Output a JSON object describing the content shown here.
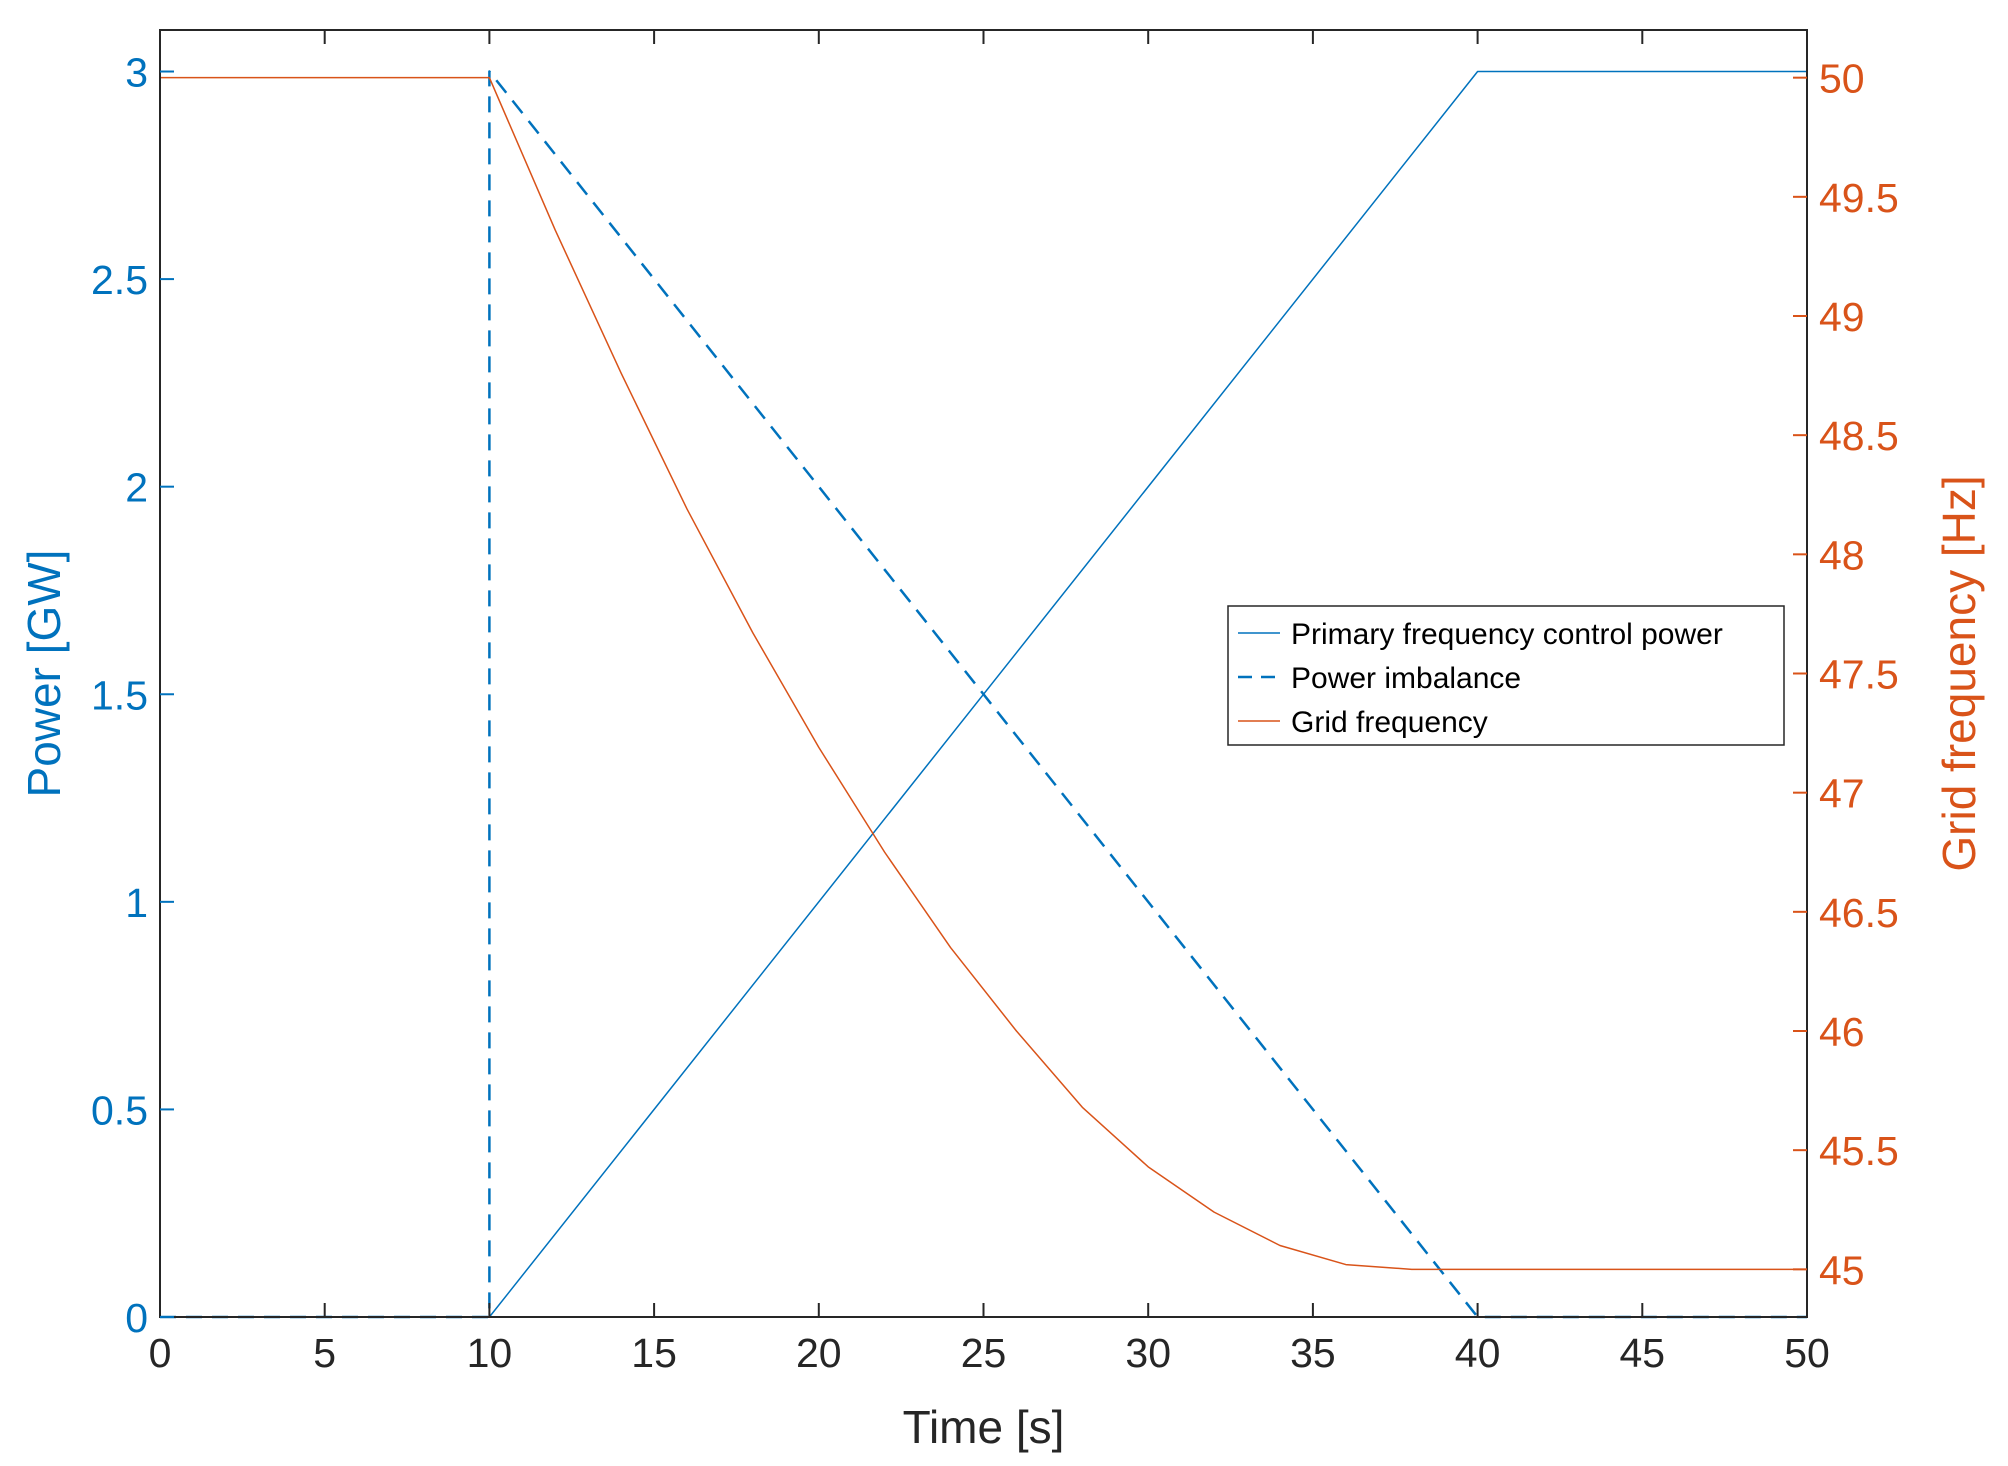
{
  "chart_data": {
    "type": "line",
    "xlabel": "Time [s]",
    "ylabel_left": "Power [GW]",
    "ylabel_right": "Grid frequency [Hz]",
    "xlim": [
      0,
      50
    ],
    "ylim_left": [
      0,
      3.1
    ],
    "ylim_right": [
      44.8,
      50.2
    ],
    "x_ticks": [
      "0",
      "5",
      "10",
      "15",
      "20",
      "25",
      "30",
      "35",
      "40",
      "45",
      "50"
    ],
    "y_left_ticks": [
      "0",
      "0.5",
      "1",
      "1.5",
      "2",
      "2.5",
      "3"
    ],
    "y_right_ticks": [
      "45",
      "45.5",
      "46",
      "46.5",
      "47",
      "47.5",
      "48",
      "48.5",
      "49",
      "49.5",
      "50"
    ],
    "grid": false,
    "legend_position": "center-right",
    "colors": {
      "power": "#0072BD",
      "frequency": "#D95319"
    },
    "series": [
      {
        "name": "Primary frequency control power",
        "axis": "left",
        "style": "solid",
        "x": [
          0,
          10,
          40,
          50
        ],
        "y": [
          0,
          0,
          3,
          3
        ]
      },
      {
        "name": "Power imbalance",
        "axis": "left",
        "style": "dashed",
        "x": [
          0,
          10,
          10,
          40,
          50
        ],
        "y": [
          0,
          0,
          3,
          0,
          0
        ]
      },
      {
        "name": "Grid frequency",
        "axis": "right",
        "style": "solid",
        "x": [
          0,
          10,
          12,
          14,
          16,
          18,
          20,
          22,
          24,
          26,
          28,
          30,
          32,
          34,
          36,
          38,
          39,
          40,
          50
        ],
        "y": [
          50,
          50,
          49.36,
          48.76,
          48.19,
          47.67,
          47.19,
          46.75,
          46.35,
          46.0,
          45.68,
          45.43,
          45.24,
          45.1,
          45.02,
          45.0,
          45.0,
          45.0,
          45.0
        ]
      }
    ]
  }
}
